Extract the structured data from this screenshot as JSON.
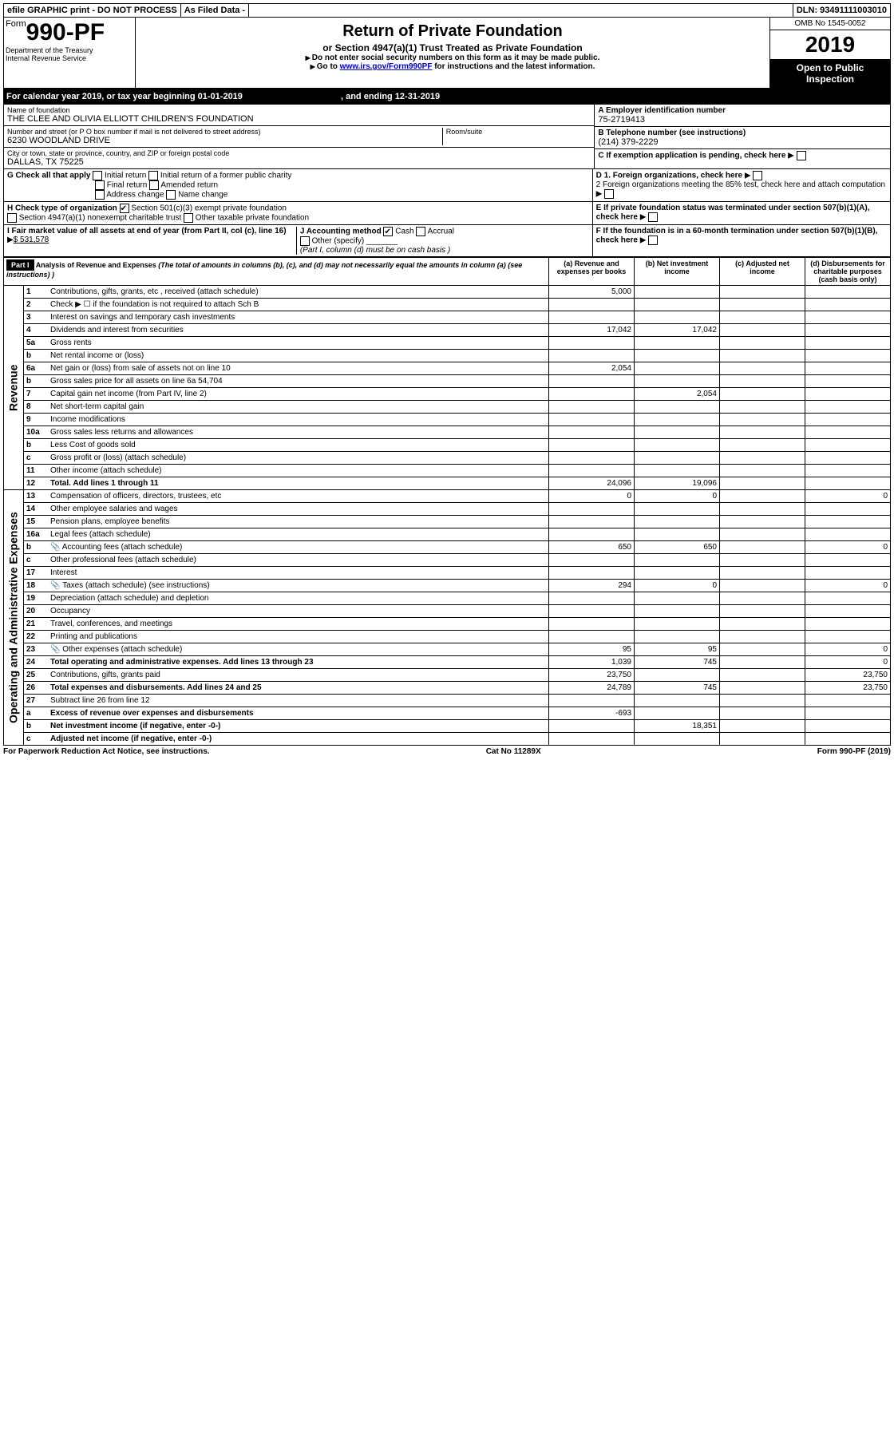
{
  "top_bar": {
    "efile": "efile GRAPHIC print - DO NOT PROCESS",
    "as_filed": "As Filed Data -",
    "dln": "DLN: 93491111003010"
  },
  "header": {
    "form_prefix": "Form",
    "form_number": "990-PF",
    "dept1": "Department of the Treasury",
    "dept2": "Internal Revenue Service",
    "title": "Return of Private Foundation",
    "subtitle": "or Section 4947(a)(1) Trust Treated as Private Foundation",
    "instr1": "Do not enter social security numbers on this form as it may be made public.",
    "instr2_pre": "Go to ",
    "instr2_link": "www.irs.gov/Form990PF",
    "instr2_post": " for instructions and the latest information.",
    "omb": "OMB No 1545-0052",
    "year": "2019",
    "open1": "Open to Public",
    "open2": "Inspection"
  },
  "cal_year": {
    "pre": "For calendar year 2019, or tax year beginning 01-01-2019",
    "mid": ", and ending 12-31-2019"
  },
  "info": {
    "name_label": "Name of foundation",
    "name_value": "THE CLEE AND OLIVIA ELLIOTT CHILDREN'S FOUNDATION",
    "addr_label": "Number and street (or P O  box number if mail is not delivered to street address)",
    "addr_value": "6230 WOODLAND DRIVE",
    "room_label": "Room/suite",
    "city_label": "City or town, state or province, country, and ZIP or foreign postal code",
    "city_value": "DALLAS, TX  75225",
    "a_label": "A Employer identification number",
    "a_value": "75-2719413",
    "b_label": "B Telephone number (see instructions)",
    "b_value": "(214) 379-2229",
    "c_label": "C If exemption application is pending, check here",
    "d1": "D 1. Foreign organizations, check here",
    "d2": "2  Foreign organizations meeting the 85% test, check here and attach computation",
    "e": "E  If private foundation status was terminated under section 507(b)(1)(A), check here",
    "f": "F  If the foundation is in a 60-month termination under section 507(b)(1)(B), check here"
  },
  "g": {
    "label": "G Check all that apply",
    "initial": "Initial return",
    "initial_former": "Initial return of a former public charity",
    "final": "Final return",
    "amended": "Amended return",
    "addr_change": "Address change",
    "name_change": "Name change"
  },
  "h": {
    "label": "H Check type of organization",
    "501c3": "Section 501(c)(3) exempt private foundation",
    "4947": "Section 4947(a)(1) nonexempt charitable trust",
    "other_tax": "Other taxable private foundation"
  },
  "i": {
    "label": "I Fair market value of all assets at end of year (from Part II, col  (c), line 16)",
    "value": "$  531,578"
  },
  "j": {
    "label": "J Accounting method",
    "cash": "Cash",
    "accrual": "Accrual",
    "other": "Other (specify)",
    "note": "(Part I, column (d) must be on cash basis )"
  },
  "part1": {
    "header": "Part I",
    "title": "Analysis of Revenue and Expenses",
    "title_note": " (The total of amounts in columns (b), (c), and (d) may not necessarily equal the amounts in column (a) (see instructions) )",
    "col_a": "(a) Revenue and expenses per books",
    "col_b": "(b) Net investment income",
    "col_c": "(c) Adjusted net income",
    "col_d": "(d) Disbursements for charitable purposes (cash basis only)",
    "revenue_label": "Revenue",
    "expenses_label": "Operating and Administrative Expenses",
    "lines": {
      "1": {
        "n": "1",
        "desc": "Contributions, gifts, grants, etc , received (attach schedule)",
        "a": "5,000"
      },
      "2": {
        "n": "2",
        "desc": "Check ▶ ☐ if the foundation is not required to attach Sch  B"
      },
      "3": {
        "n": "3",
        "desc": "Interest on savings and temporary cash investments"
      },
      "4": {
        "n": "4",
        "desc": "Dividends and interest from securities",
        "a": "17,042",
        "b": "17,042"
      },
      "5a": {
        "n": "5a",
        "desc": "Gross rents"
      },
      "5b": {
        "n": "b",
        "desc": "Net rental income or (loss)"
      },
      "6a": {
        "n": "6a",
        "desc": "Net gain or (loss) from sale of assets not on line 10",
        "a": "2,054"
      },
      "6b": {
        "n": "b",
        "desc": "Gross sales price for all assets on line 6a",
        "val": "54,704"
      },
      "7": {
        "n": "7",
        "desc": "Capital gain net income (from Part IV, line 2)",
        "b": "2,054"
      },
      "8": {
        "n": "8",
        "desc": "Net short-term capital gain"
      },
      "9": {
        "n": "9",
        "desc": "Income modifications"
      },
      "10a": {
        "n": "10a",
        "desc": "Gross sales less returns and allowances"
      },
      "10b": {
        "n": "b",
        "desc": "Less  Cost of goods sold"
      },
      "10c": {
        "n": "c",
        "desc": "Gross profit or (loss) (attach schedule)"
      },
      "11": {
        "n": "11",
        "desc": "Other income (attach schedule)"
      },
      "12": {
        "n": "12",
        "desc": "Total. Add lines 1 through 11",
        "a": "24,096",
        "b": "19,096",
        "bold": true
      },
      "13": {
        "n": "13",
        "desc": "Compensation of officers, directors, trustees, etc",
        "a": "0",
        "b": "0",
        "d": "0"
      },
      "14": {
        "n": "14",
        "desc": "Other employee salaries and wages"
      },
      "15": {
        "n": "15",
        "desc": "Pension plans, employee benefits"
      },
      "16a": {
        "n": "16a",
        "desc": "Legal fees (attach schedule)"
      },
      "16b": {
        "n": "b",
        "desc": "Accounting fees (attach schedule)",
        "a": "650",
        "b": "650",
        "d": "0",
        "icon": true
      },
      "16c": {
        "n": "c",
        "desc": "Other professional fees (attach schedule)"
      },
      "17": {
        "n": "17",
        "desc": "Interest"
      },
      "18": {
        "n": "18",
        "desc": "Taxes (attach schedule) (see instructions)",
        "a": "294",
        "b": "0",
        "d": "0",
        "icon": true
      },
      "19": {
        "n": "19",
        "desc": "Depreciation (attach schedule) and depletion"
      },
      "20": {
        "n": "20",
        "desc": "Occupancy"
      },
      "21": {
        "n": "21",
        "desc": "Travel, conferences, and meetings"
      },
      "22": {
        "n": "22",
        "desc": "Printing and publications"
      },
      "23": {
        "n": "23",
        "desc": "Other expenses (attach schedule)",
        "a": "95",
        "b": "95",
        "d": "0",
        "icon": true
      },
      "24": {
        "n": "24",
        "desc": "Total operating and administrative expenses. Add lines 13 through 23",
        "a": "1,039",
        "b": "745",
        "d": "0",
        "bold": true
      },
      "25": {
        "n": "25",
        "desc": "Contributions, gifts, grants paid",
        "a": "23,750",
        "d": "23,750"
      },
      "26": {
        "n": "26",
        "desc": "Total expenses and disbursements. Add lines 24 and 25",
        "a": "24,789",
        "b": "745",
        "d": "23,750",
        "bold": true
      },
      "27": {
        "n": "27",
        "desc": "Subtract line 26 from line 12"
      },
      "27a": {
        "n": "a",
        "desc": "Excess of revenue over expenses and disbursements",
        "a": "-693",
        "bold": true
      },
      "27b": {
        "n": "b",
        "desc": "Net investment income (if negative, enter -0-)",
        "b": "18,351",
        "bold": true
      },
      "27c": {
        "n": "c",
        "desc": "Adjusted net income (if negative, enter -0-)",
        "bold": true
      }
    }
  },
  "footer": {
    "left": "For Paperwork Reduction Act Notice, see instructions.",
    "mid": "Cat  No  11289X",
    "right": "Form 990-PF (2019)"
  }
}
